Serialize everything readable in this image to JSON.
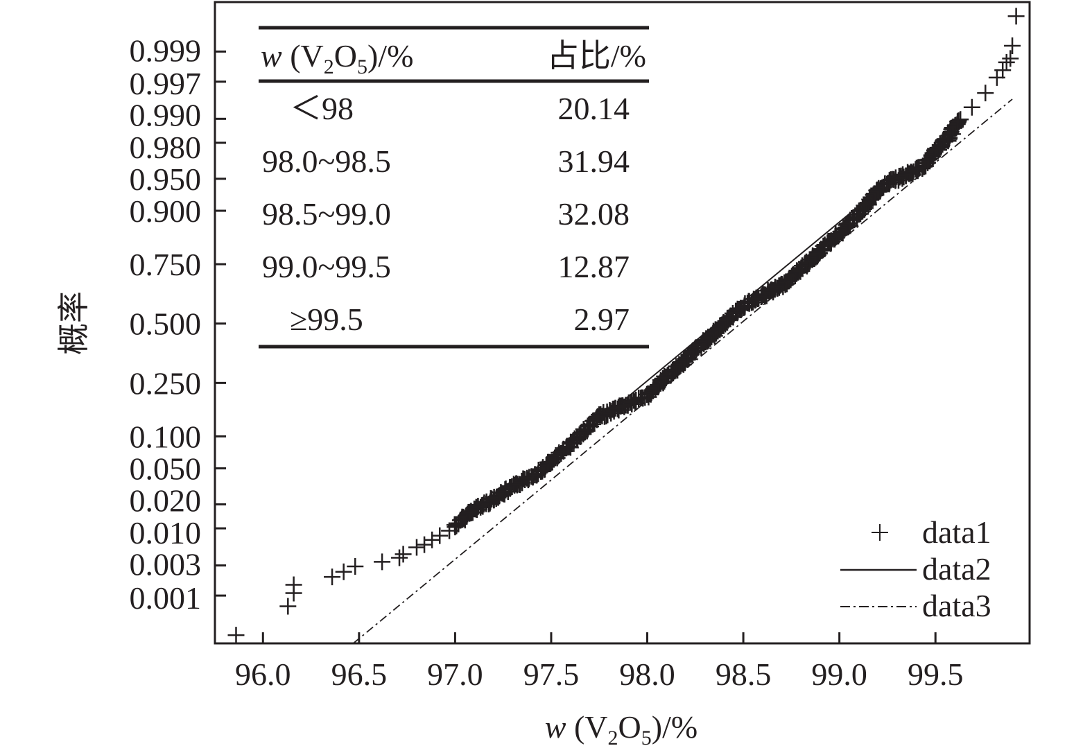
{
  "chart_data": {
    "type": "scatter",
    "subtype": "normal-probability-plot",
    "xlabel": {
      "italic": "w",
      "pre": " (V",
      "sub1": "2",
      "mid": "O",
      "sub2": "5",
      "post": ")/%"
    },
    "ylabel": "概率",
    "xlim": [
      95.75,
      99.99
    ],
    "ylim_probability": [
      0.00014,
      0.99987
    ],
    "y_scale": "normal-probability",
    "x_ticks": [
      "96.0",
      "96.5",
      "97.0",
      "97.5",
      "98.0",
      "98.5",
      "99.0",
      "99.5"
    ],
    "y_ticks": [
      "0.001",
      "0.003",
      "0.010",
      "0.020",
      "0.050",
      "0.100",
      "0.250",
      "0.500",
      "0.750",
      "0.900",
      "0.950",
      "0.980",
      "0.990",
      "0.997",
      "0.999"
    ],
    "grid": false,
    "legend": {
      "placement": "bottom-right",
      "entries": [
        {
          "name": "data1",
          "style": "plus-marker"
        },
        {
          "name": "data2",
          "style": "solid-line"
        },
        {
          "name": "data3",
          "style": "dash-dot-line"
        }
      ]
    },
    "series": [
      {
        "name": "data1",
        "type": "scatter",
        "marker": "+",
        "points": [
          [
            95.86,
            0.0002
          ],
          [
            96.13,
            0.00066
          ],
          [
            96.16,
            0.0011
          ],
          [
            96.16,
            0.0015
          ],
          [
            96.36,
            0.002
          ],
          [
            96.42,
            0.0024
          ],
          [
            96.48,
            0.0029
          ],
          [
            96.62,
            0.0034
          ],
          [
            96.71,
            0.0039
          ],
          [
            96.73,
            0.0044
          ],
          [
            96.8,
            0.0055
          ],
          [
            96.84,
            0.006
          ],
          [
            96.88,
            0.007
          ],
          [
            96.92,
            0.008
          ],
          [
            96.97,
            0.0093
          ],
          [
            99.69,
            0.993
          ],
          [
            99.76,
            0.9956
          ],
          [
            99.82,
            0.9974
          ],
          [
            99.85,
            0.998
          ],
          [
            99.87,
            0.9985
          ],
          [
            99.89,
            0.9987
          ],
          [
            99.9,
            0.9992
          ],
          [
            99.92,
            0.99976
          ]
        ],
        "dense_curve": [
          [
            97.0,
            0.0105
          ],
          [
            97.07,
            0.0155
          ],
          [
            97.25,
            0.027
          ],
          [
            97.45,
            0.048
          ],
          [
            97.57,
            0.075
          ],
          [
            97.75,
            0.145
          ],
          [
            98.0,
            0.206
          ],
          [
            98.23,
            0.364
          ],
          [
            98.5,
            0.58
          ],
          [
            98.71,
            0.67
          ],
          [
            99.05,
            0.87
          ],
          [
            99.23,
            0.942
          ],
          [
            99.43,
            0.962
          ],
          [
            99.56,
            0.982
          ],
          [
            99.63,
            0.99
          ]
        ]
      },
      {
        "name": "data2",
        "type": "line",
        "style": "solid",
        "points": [
          [
            97.6,
            0.085
          ],
          [
            99.2,
            0.935
          ]
        ]
      },
      {
        "name": "data3",
        "type": "line",
        "style": "dash-dot",
        "points": [
          [
            96.47,
            0.00014
          ],
          [
            99.9,
            0.9946
          ]
        ]
      }
    ]
  },
  "inset_table": {
    "header": {
      "col1": {
        "italic": "w",
        "pre": " (V",
        "sub1": "2",
        "mid": "O",
        "sub2": "5",
        "post": ")/%"
      },
      "col2": "占比/%"
    },
    "rows": [
      {
        "range": "＜98",
        "share": "20.14"
      },
      {
        "range": "98.0~98.5",
        "share": "31.94"
      },
      {
        "range": "98.5~99.0",
        "share": "32.08"
      },
      {
        "range": "99.0~99.5",
        "share": "12.87"
      },
      {
        "range": "≥99.5",
        "share": "2.97"
      }
    ]
  }
}
